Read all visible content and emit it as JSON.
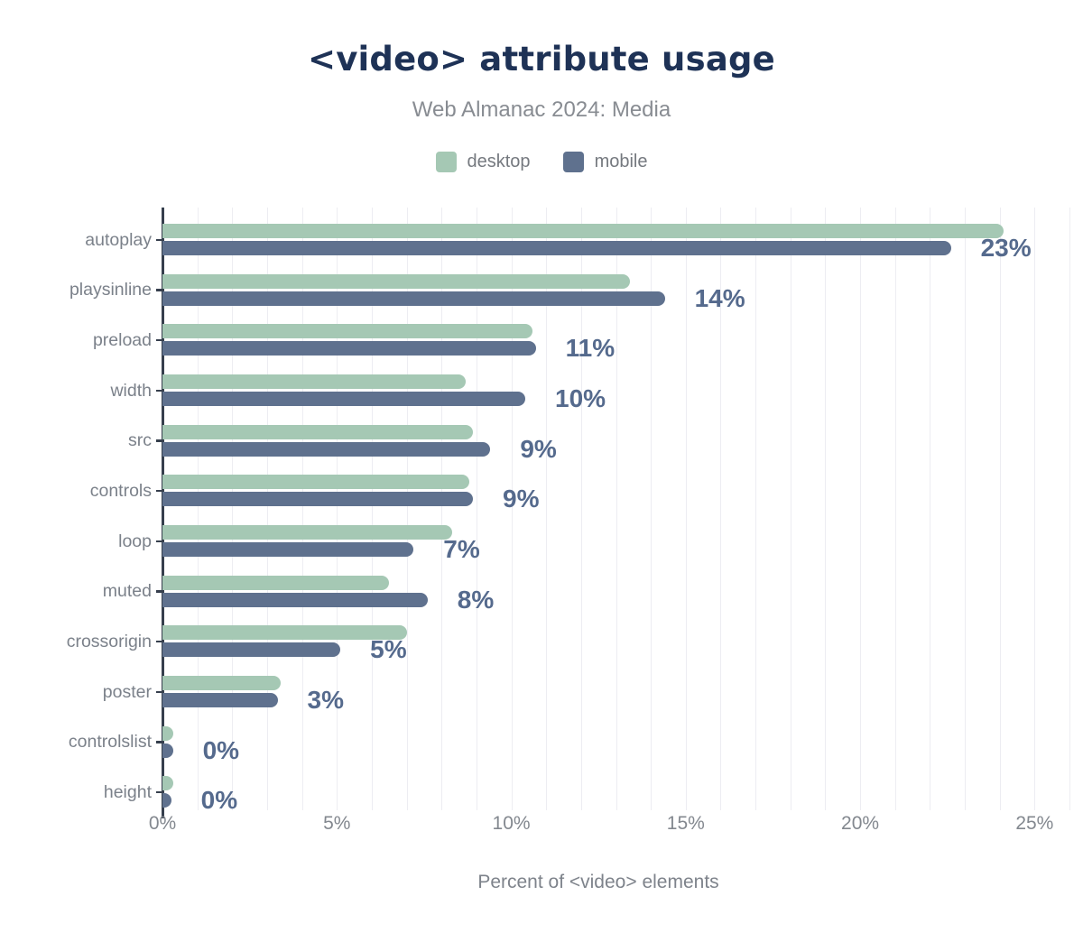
{
  "chart_data": {
    "type": "bar",
    "orientation": "horizontal",
    "title": "<video> attribute usage",
    "subtitle": "Web Almanac 2024: Media",
    "xlabel": "Percent of <video> elements",
    "categories": [
      "autoplay",
      "playsinline",
      "preload",
      "width",
      "src",
      "controls",
      "loop",
      "muted",
      "crossorigin",
      "poster",
      "controlslist",
      "height"
    ],
    "series": [
      {
        "name": "desktop",
        "color": "#a5c8b4",
        "values": [
          24.1,
          13.4,
          10.6,
          8.7,
          8.9,
          8.8,
          8.3,
          6.5,
          7.0,
          3.4,
          0.3,
          0.3
        ]
      },
      {
        "name": "mobile",
        "color": "#5f718e",
        "values": [
          22.6,
          14.4,
          10.7,
          10.4,
          9.4,
          8.9,
          7.2,
          7.6,
          5.1,
          3.3,
          0.3,
          0.25
        ]
      }
    ],
    "value_labels": [
      "23%",
      "14%",
      "11%",
      "10%",
      "9%",
      "9%",
      "7%",
      "8%",
      "5%",
      "3%",
      "0%",
      "0%"
    ],
    "value_labels_source": "mobile series, rounded",
    "x_ticks": [
      "0%",
      "5%",
      "10%",
      "15%",
      "20%",
      "25%"
    ],
    "x_tick_values": [
      0,
      5,
      10,
      15,
      20,
      25
    ],
    "xlim": [
      0,
      26
    ],
    "grid": "vertical gridlines every 1%",
    "legend_position": "top center"
  },
  "colors": {
    "background": "#ffffff",
    "title": "#1e3256",
    "subtitle": "#888c92",
    "legend_text": "#75797f",
    "desktop_bar": "#a5c8b4",
    "mobile_bar": "#5f718e",
    "value_label": "#556a8d",
    "category_label": "#7b818a",
    "tick_label": "#83888f",
    "axis_line": "#363f4d",
    "gridline": "#ededf2"
  }
}
